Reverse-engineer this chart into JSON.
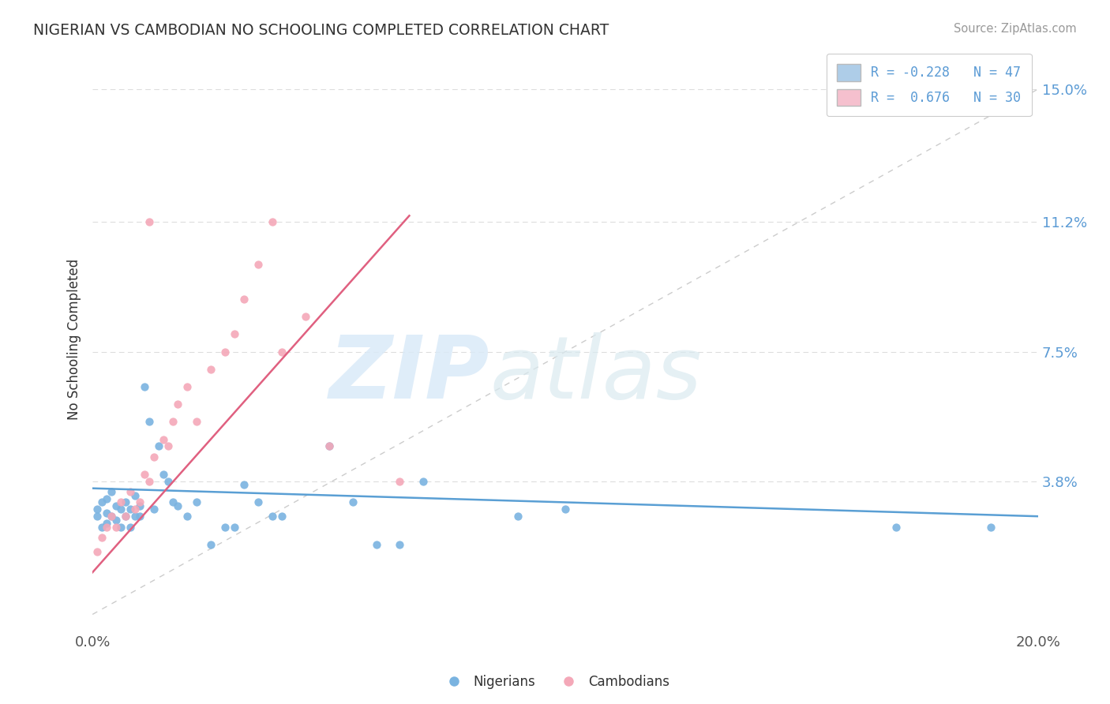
{
  "title": "NIGERIAN VS CAMBODIAN NO SCHOOLING COMPLETED CORRELATION CHART",
  "source": "Source: ZipAtlas.com",
  "ylabel": "No Schooling Completed",
  "xlim": [
    0.0,
    0.2
  ],
  "ylim": [
    -0.005,
    0.162
  ],
  "yticks": [
    0.038,
    0.075,
    0.112,
    0.15
  ],
  "ytick_labels": [
    "3.8%",
    "7.5%",
    "11.2%",
    "15.0%"
  ],
  "xtick_vals": [
    0.0,
    0.2
  ],
  "xtick_labels": [
    "0.0%",
    "20.0%"
  ],
  "nigerian_color": "#7ab3e0",
  "cambodian_color": "#f4a8b8",
  "nigerian_line_color": "#5a9fd4",
  "cambodian_line_color": "#e06080",
  "diag_color": "#cccccc",
  "legend_nigerian_color": "#aecde8",
  "legend_cambodian_color": "#f5c0ce",
  "legend_text_color": "#5b9bd5",
  "title_color": "#333333",
  "source_color": "#999999",
  "grid_color": "#dddddd",
  "nig_x": [
    0.001,
    0.001,
    0.002,
    0.002,
    0.003,
    0.003,
    0.003,
    0.004,
    0.004,
    0.005,
    0.005,
    0.006,
    0.006,
    0.007,
    0.007,
    0.008,
    0.008,
    0.009,
    0.009,
    0.01,
    0.01,
    0.011,
    0.012,
    0.013,
    0.014,
    0.015,
    0.016,
    0.017,
    0.018,
    0.02,
    0.022,
    0.025,
    0.028,
    0.03,
    0.032,
    0.035,
    0.038,
    0.04,
    0.05,
    0.055,
    0.06,
    0.065,
    0.07,
    0.09,
    0.1,
    0.17,
    0.19
  ],
  "nig_y": [
    0.03,
    0.028,
    0.032,
    0.025,
    0.026,
    0.033,
    0.029,
    0.028,
    0.035,
    0.027,
    0.031,
    0.025,
    0.03,
    0.032,
    0.028,
    0.03,
    0.025,
    0.034,
    0.028,
    0.031,
    0.028,
    0.065,
    0.055,
    0.03,
    0.048,
    0.04,
    0.038,
    0.032,
    0.031,
    0.028,
    0.032,
    0.02,
    0.025,
    0.025,
    0.037,
    0.032,
    0.028,
    0.028,
    0.048,
    0.032,
    0.02,
    0.02,
    0.038,
    0.028,
    0.03,
    0.025,
    0.025
  ],
  "cam_x": [
    0.001,
    0.002,
    0.003,
    0.004,
    0.005,
    0.006,
    0.007,
    0.008,
    0.009,
    0.01,
    0.011,
    0.012,
    0.013,
    0.015,
    0.016,
    0.017,
    0.018,
    0.02,
    0.022,
    0.025,
    0.028,
    0.03,
    0.032,
    0.035,
    0.038,
    0.04,
    0.05,
    0.065,
    0.012,
    0.045
  ],
  "cam_y": [
    0.018,
    0.022,
    0.025,
    0.028,
    0.025,
    0.032,
    0.028,
    0.035,
    0.03,
    0.032,
    0.04,
    0.038,
    0.045,
    0.05,
    0.048,
    0.055,
    0.06,
    0.065,
    0.055,
    0.07,
    0.075,
    0.08,
    0.09,
    0.1,
    0.112,
    0.075,
    0.048,
    0.038,
    0.112,
    0.085
  ],
  "nig_line_x": [
    0.0,
    0.2
  ],
  "nig_line_slope": -0.04,
  "nig_line_int": 0.036,
  "cam_line_x": [
    0.0,
    0.067
  ],
  "cam_line_slope": 1.52,
  "cam_line_int": 0.012
}
